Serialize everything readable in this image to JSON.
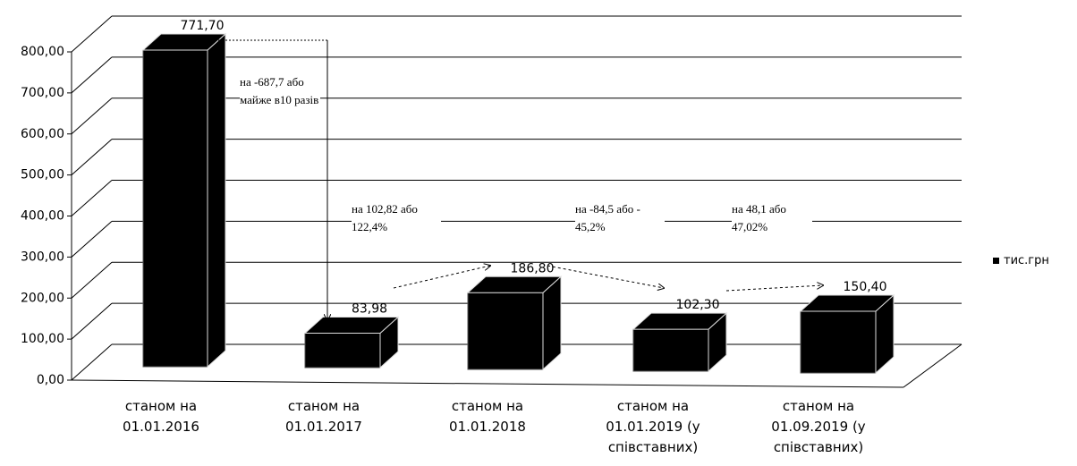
{
  "chart_data": {
    "type": "bar",
    "categories": [
      "станом на 01.01.2016",
      "станом на 01.01.2017",
      "станом на 01.01.2018",
      "станом на 01.01.2019 (у співставних)",
      "станом на 01.09.2019 (у співставних)"
    ],
    "series": [
      {
        "name": "тис.грн",
        "color": "#000000",
        "values": [
          771.7,
          83.98,
          186.8,
          102.3,
          150.4
        ],
        "value_labels": [
          "771,70",
          "83,98",
          "186,80",
          "102,30",
          "150,40"
        ]
      }
    ],
    "ylim": [
      0,
      800
    ],
    "yticks": [
      {
        "value": 0,
        "label": "0,00"
      },
      {
        "value": 100,
        "label": "100,00"
      },
      {
        "value": 200,
        "label": "200,00"
      },
      {
        "value": 300,
        "label": "300,00"
      },
      {
        "value": 400,
        "label": "400,00"
      },
      {
        "value": 500,
        "label": "500,00"
      },
      {
        "value": 600,
        "label": "600,00"
      },
      {
        "value": 700,
        "label": "700,00"
      },
      {
        "value": 800,
        "label": "800,00"
      }
    ],
    "grid": true,
    "legend": "right",
    "annotations": [
      "на -687,7 або майже в10 разів",
      "на 102,82 або 122,4%",
      "на -84,5 або - 45,2%",
      "на 48,1 або 47,02%"
    ]
  }
}
